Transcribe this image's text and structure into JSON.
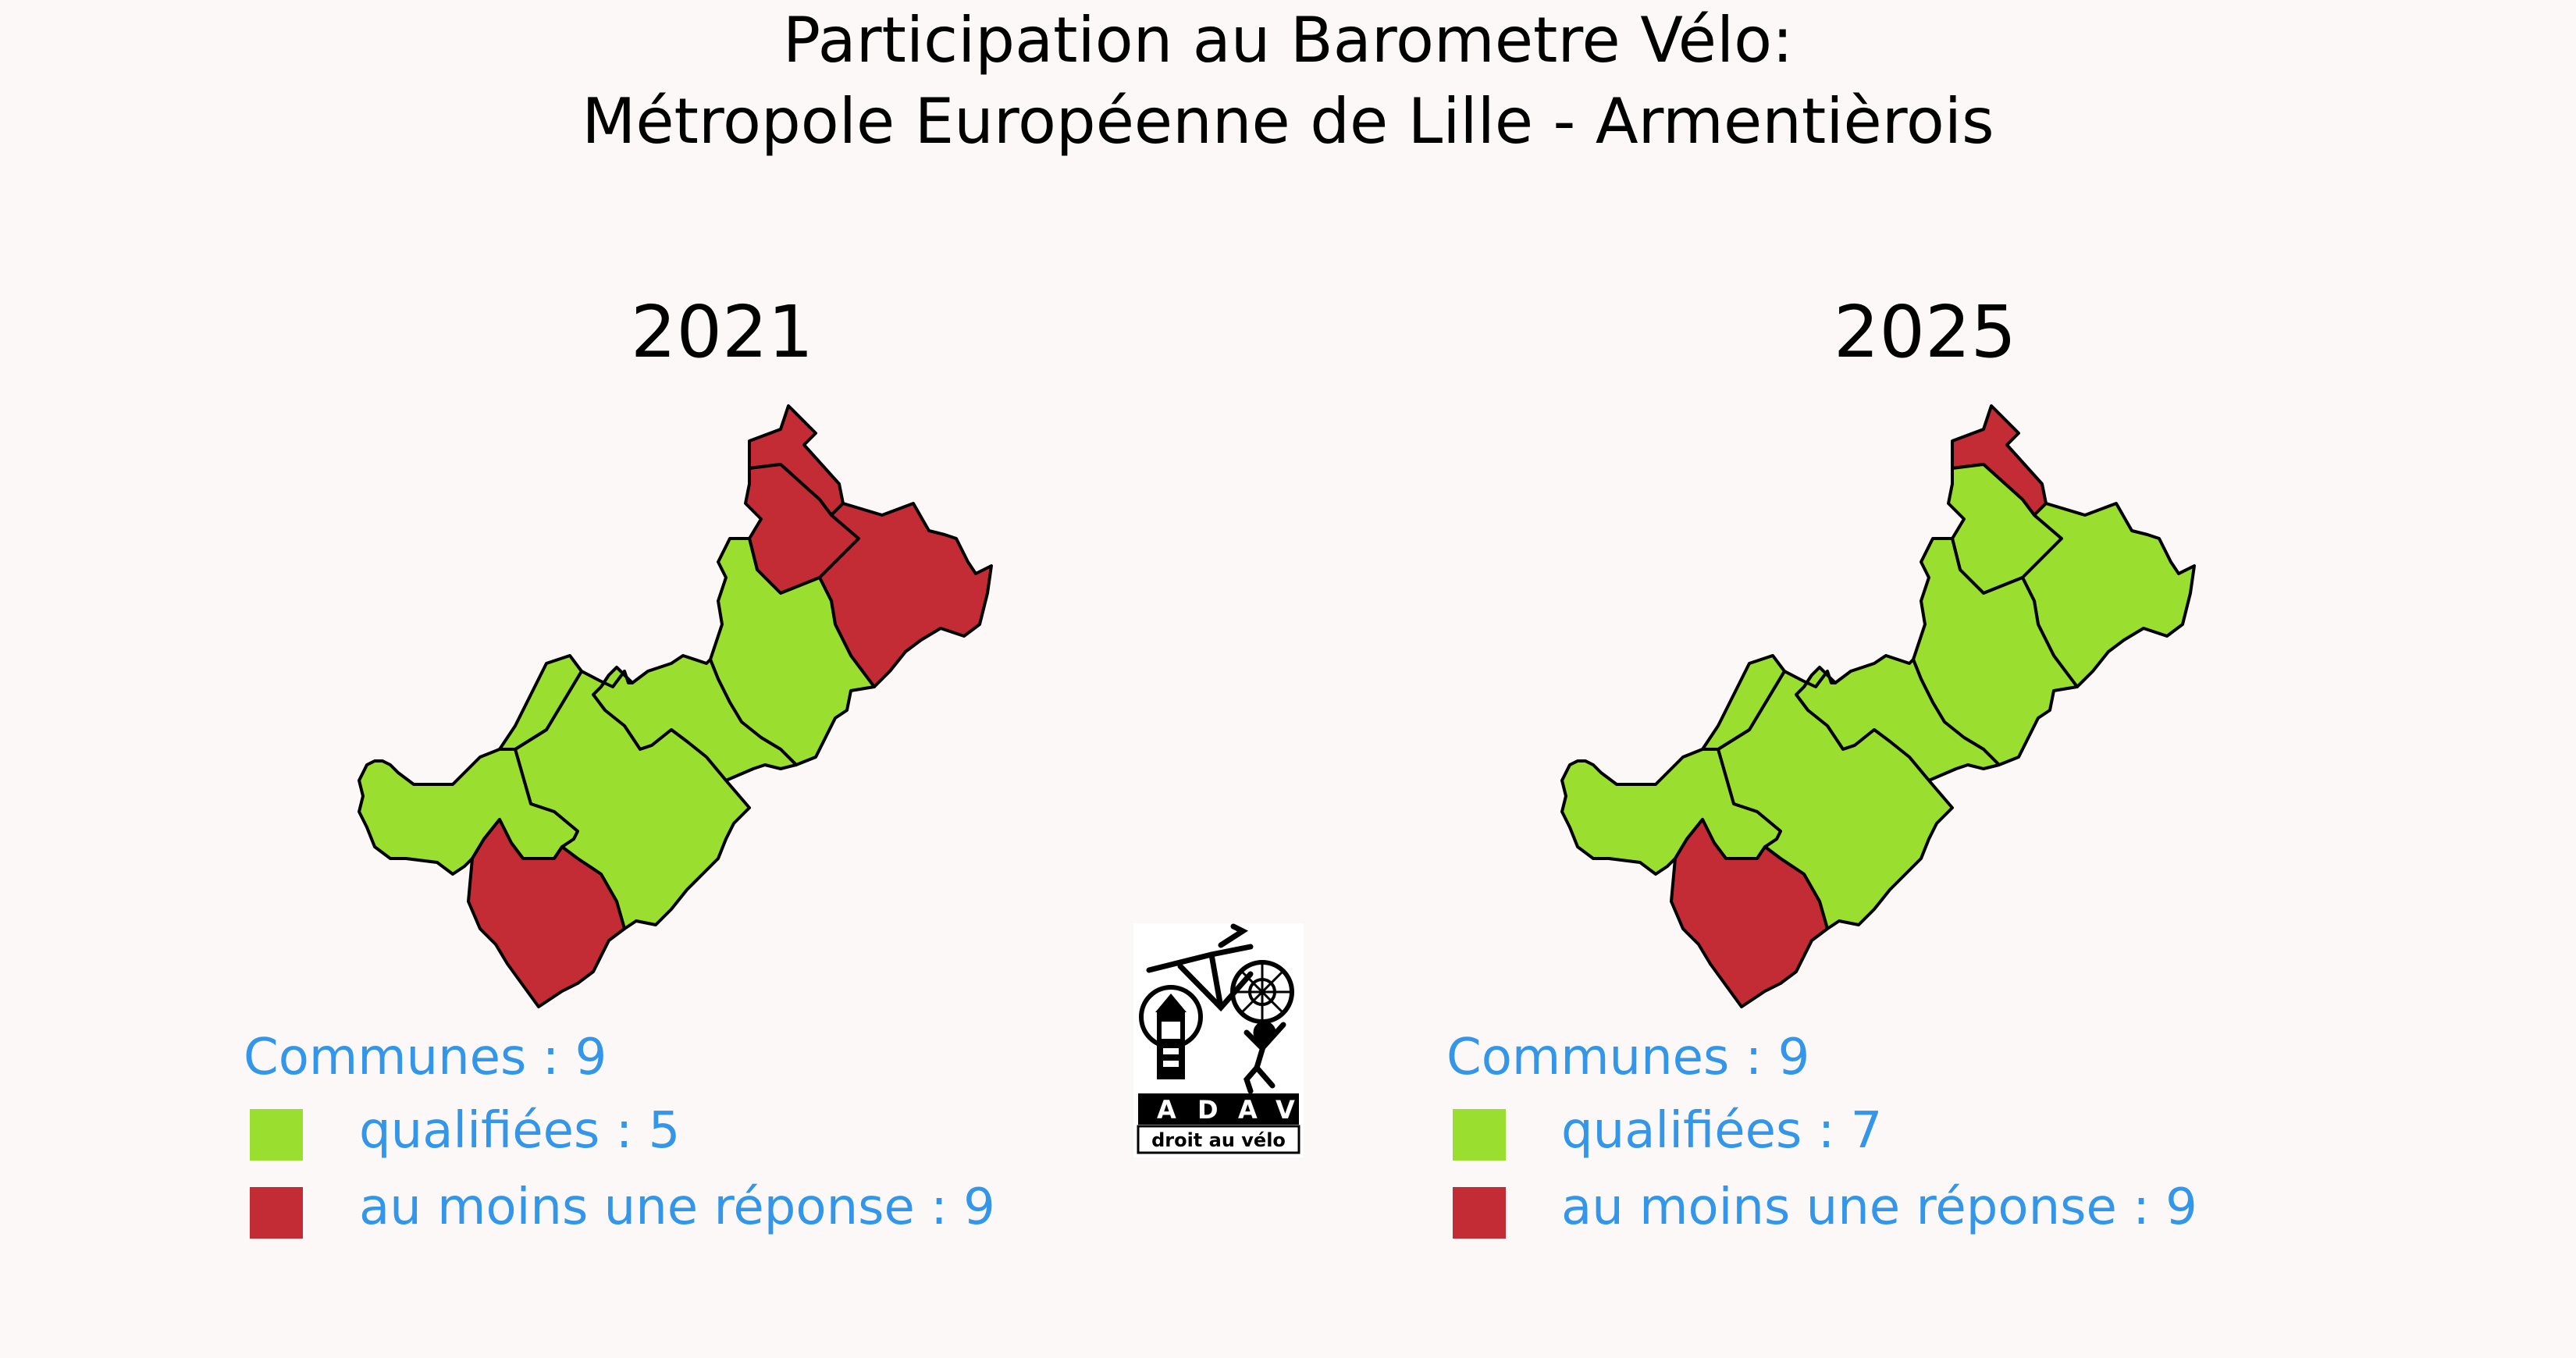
{
  "title_line1": "Participation au Barometre Vélo:",
  "title_line2": "Métropole Européenne de Lille - Armentièrois",
  "colors": {
    "qualified": "#9ade2f",
    "response": "#c32c34",
    "legend_text": "#3396e8",
    "background": "#fcf8f7"
  },
  "panels": [
    {
      "year": "2021",
      "communes_label": "Communes : 9",
      "qualified_label": "qualifiées : 5",
      "response_label": "au moins une réponse : 9",
      "status": [
        "response",
        "response",
        "response",
        "qualified",
        "qualified",
        "qualified",
        "qualified",
        "qualified",
        "response"
      ]
    },
    {
      "year": "2025",
      "communes_label": "Communes : 9",
      "qualified_label": "qualifiées : 7",
      "response_label": "au moins une réponse : 9",
      "status": [
        "response",
        "qualified",
        "qualified",
        "qualified",
        "qualified",
        "qualified",
        "qualified",
        "qualified",
        "response"
      ]
    }
  ],
  "logo": {
    "acronym": [
      "A",
      "D",
      "A",
      "V"
    ],
    "tagline": "droit au vélo"
  }
}
